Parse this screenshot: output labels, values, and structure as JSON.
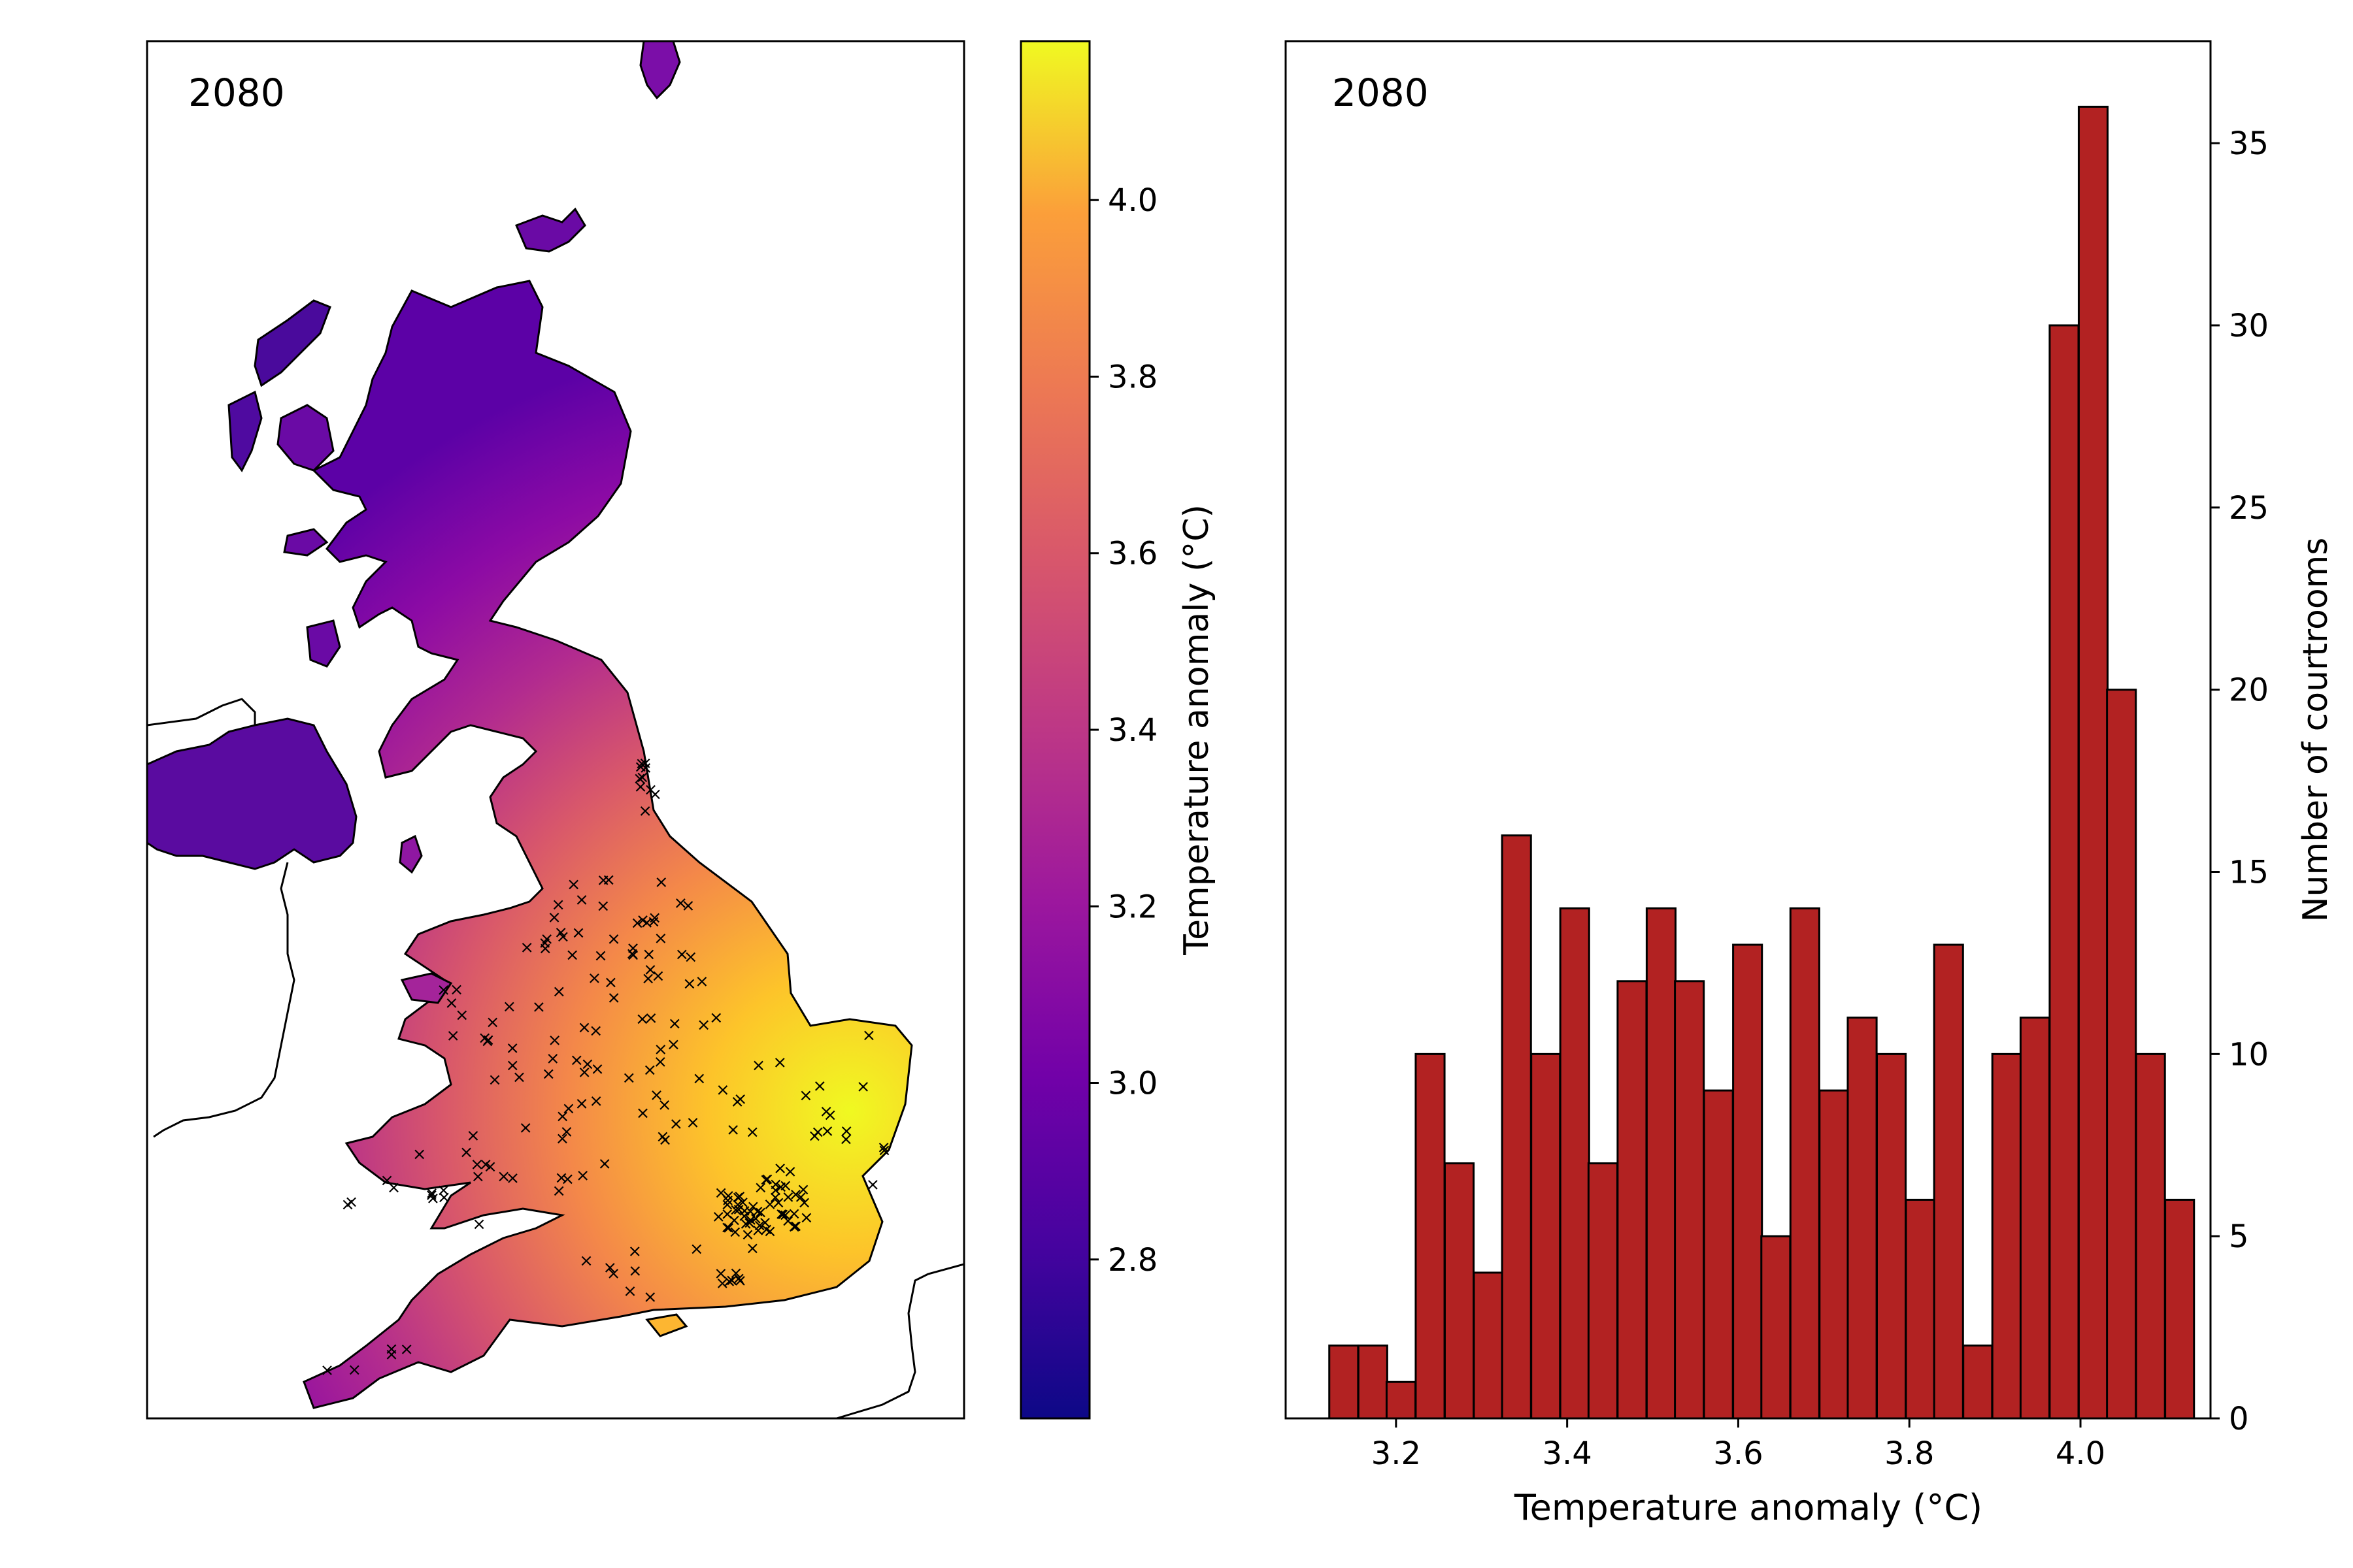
{
  "map_panel": {
    "year_label": "2080",
    "colorbar": {
      "label": "Temperature anomaly (°C)",
      "ticks": [
        "2.8",
        "3.0",
        "3.2",
        "3.4",
        "3.6",
        "3.8",
        "4.0"
      ],
      "range": [
        2.62,
        4.18
      ],
      "colormap": "plasma"
    },
    "marker": "×"
  },
  "chart_data": {
    "type": "bar",
    "title": "2080",
    "xlabel": "Temperature anomaly (°C)",
    "ylabel": "Number of courtrooms",
    "bin_width": 0.0337,
    "bin_starts": [
      3.122,
      3.156,
      3.189,
      3.223,
      3.257,
      3.291,
      3.324,
      3.358,
      3.392,
      3.425,
      3.459,
      3.493,
      3.526,
      3.56,
      3.594,
      3.627,
      3.661,
      3.695,
      3.728,
      3.762,
      3.796,
      3.829,
      3.863,
      3.897,
      3.93,
      3.964,
      3.998,
      4.031,
      4.065,
      4.099
    ],
    "values": [
      2,
      2,
      1,
      10,
      7,
      4,
      16,
      10,
      14,
      7,
      12,
      14,
      12,
      9,
      13,
      5,
      14,
      9,
      11,
      10,
      6,
      13,
      2,
      10,
      11,
      30,
      36,
      20,
      10,
      6
    ],
    "xticks": [
      "3.2",
      "3.4",
      "3.6",
      "3.8",
      "4.0"
    ],
    "yticks": [
      "0",
      "5",
      "10",
      "15",
      "20",
      "25",
      "30",
      "35"
    ],
    "xlim": [
      3.071,
      4.152
    ],
    "ylim": [
      0,
      37.8
    ],
    "bar_color": "#b22222",
    "edge_color": "#000000"
  }
}
